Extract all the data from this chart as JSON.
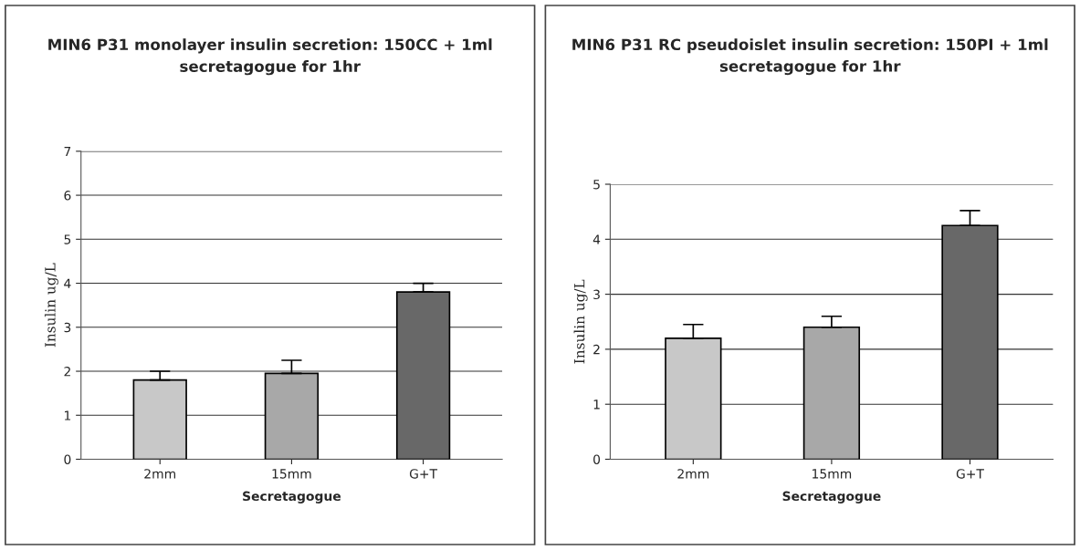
{
  "chart_data": [
    {
      "type": "bar",
      "title": "MIN6 P31 monolayer insulin secretion: 150CC + 1ml secretagogue for 1hr",
      "xlabel": "Secretagogue",
      "ylabel": "Insulin ug/L",
      "categories": [
        "2mm",
        "15mm",
        "G+T"
      ],
      "values": [
        1.8,
        1.95,
        3.8
      ],
      "colors": [
        "#c8c8c8",
        "#a8a8a8",
        "#686868"
      ],
      "errors": [
        [
          1.8,
          2.0
        ],
        [
          1.95,
          2.25
        ],
        [
          3.8,
          4.0
        ]
      ],
      "ylim": [
        0,
        7
      ],
      "yticks": [
        0,
        1,
        2,
        3,
        4,
        5,
        6,
        7
      ],
      "grid": "y"
    },
    {
      "type": "bar",
      "title": "MIN6 P31 RC pseudoislet insulin secretion: 150PI + 1ml secretagogue for 1hr",
      "xlabel": "Secretagogue",
      "ylabel": "Insulin ug/L",
      "categories": [
        "2mm",
        "15mm",
        "G+T"
      ],
      "values": [
        2.2,
        2.4,
        4.25
      ],
      "colors": [
        "#c8c8c8",
        "#a8a8a8",
        "#686868"
      ],
      "errors": [
        [
          2.2,
          2.45
        ],
        [
          2.4,
          2.6
        ],
        [
          4.25,
          4.52
        ]
      ],
      "ylim": [
        0,
        5
      ],
      "yticks": [
        0,
        1,
        2,
        3,
        4,
        5
      ],
      "grid": "y"
    }
  ]
}
